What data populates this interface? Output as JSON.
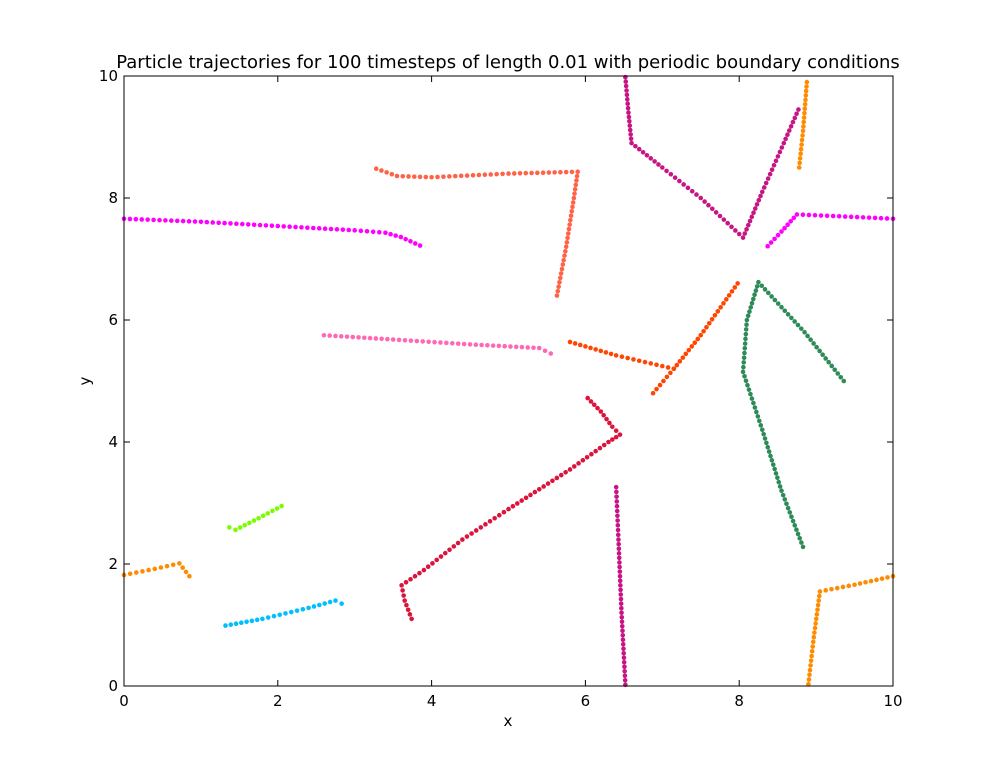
{
  "chart_data": {
    "type": "scatter",
    "title": "Particle trajectories for 100 timesteps of length 0.01 with periodic boundary conditions",
    "xlabel": "x",
    "ylabel": "y",
    "xlim": [
      0,
      10
    ],
    "ylim": [
      0,
      10
    ],
    "xticks": [
      "0",
      "2",
      "4",
      "6",
      "8",
      "10"
    ],
    "yticks": [
      "0",
      "2",
      "4",
      "6",
      "8",
      "10"
    ],
    "grid": false,
    "legend": "none",
    "trajectories": [
      {
        "color": "#ff00ff",
        "segments": [
          [
            [
              0.0,
              7.66
            ],
            [
              1.0,
              7.61
            ],
            [
              2.0,
              7.54
            ],
            [
              3.0,
              7.47
            ],
            [
              3.4,
              7.43
            ],
            [
              3.6,
              7.36
            ],
            [
              3.85,
              7.22
            ]
          ],
          [
            [
              8.37,
              7.21
            ],
            [
              8.55,
              7.45
            ],
            [
              8.75,
              7.73
            ],
            [
              9.3,
              7.7
            ],
            [
              10.0,
              7.66
            ]
          ]
        ]
      },
      {
        "color": "#ff6347",
        "segments": [
          [
            [
              3.28,
              8.48
            ],
            [
              3.55,
              8.36
            ],
            [
              4.0,
              8.34
            ],
            [
              5.0,
              8.4
            ],
            [
              5.9,
              8.43
            ],
            [
              5.85,
              8.0
            ],
            [
              5.75,
              7.2
            ],
            [
              5.63,
              6.4
            ]
          ]
        ]
      },
      {
        "color": "#c71585",
        "segments": [
          [
            [
              6.52,
              9.98
            ],
            [
              6.56,
              9.4
            ],
            [
              6.6,
              8.9
            ],
            [
              7.0,
              8.5
            ],
            [
              7.5,
              8.0
            ],
            [
              8.05,
              7.35
            ],
            [
              8.3,
              8.1
            ],
            [
              8.58,
              8.9
            ],
            [
              8.77,
              9.45
            ]
          ],
          [
            [
              6.4,
              3.26
            ],
            [
              6.43,
              2.4
            ],
            [
              6.47,
              1.2
            ],
            [
              6.52,
              0.02
            ]
          ]
        ]
      },
      {
        "color": "#ff8c00",
        "segments": [
          [
            [
              8.78,
              8.5
            ],
            [
              8.83,
              9.1
            ],
            [
              8.88,
              9.9
            ]
          ],
          [
            [
              0.0,
              1.82
            ],
            [
              0.4,
              1.92
            ],
            [
              0.72,
              2.01
            ],
            [
              0.85,
              1.8
            ]
          ],
          [
            [
              8.9,
              0.03
            ],
            [
              8.97,
              0.8
            ],
            [
              9.05,
              1.55
            ],
            [
              9.5,
              1.66
            ],
            [
              10.0,
              1.8
            ]
          ]
        ]
      },
      {
        "color": "#2e8b57",
        "segments": [
          [
            [
              9.36,
              5.0
            ],
            [
              8.85,
              5.8
            ],
            [
              8.25,
              6.62
            ],
            [
              8.1,
              6.0
            ],
            [
              8.05,
              5.15
            ],
            [
              8.3,
              4.2
            ],
            [
              8.55,
              3.2
            ],
            [
              8.83,
              2.28
            ]
          ]
        ]
      },
      {
        "color": "#ff4500",
        "segments": [
          [
            [
              5.8,
              5.64
            ],
            [
              6.4,
              5.42
            ],
            [
              7.15,
              5.2
            ],
            [
              6.88,
              4.8
            ]
          ],
          [
            [
              7.15,
              5.2
            ],
            [
              7.5,
              5.75
            ],
            [
              7.98,
              6.6
            ]
          ]
        ]
      },
      {
        "color": "#ff69b4",
        "segments": [
          [
            [
              2.6,
              5.75
            ],
            [
              3.5,
              5.68
            ],
            [
              4.5,
              5.6
            ],
            [
              5.4,
              5.54
            ],
            [
              5.55,
              5.45
            ]
          ]
        ]
      },
      {
        "color": "#dc143c",
        "segments": [
          [
            [
              6.03,
              4.72
            ],
            [
              6.2,
              4.5
            ],
            [
              6.35,
              4.25
            ],
            [
              6.45,
              4.12
            ],
            [
              6.3,
              4.0
            ],
            [
              5.8,
              3.55
            ],
            [
              5.0,
              2.9
            ],
            [
              4.4,
              2.4
            ],
            [
              3.9,
              1.9
            ],
            [
              3.61,
              1.65
            ],
            [
              3.65,
              1.4
            ],
            [
              3.74,
              1.1
            ]
          ]
        ]
      },
      {
        "color": "#7cfc00",
        "segments": [
          [
            [
              1.37,
              2.6
            ],
            [
              1.45,
              2.56
            ],
            [
              1.75,
              2.75
            ],
            [
              2.05,
              2.95
            ]
          ]
        ]
      },
      {
        "color": "#00bfff",
        "segments": [
          [
            [
              1.32,
              0.99
            ],
            [
              1.8,
              1.1
            ],
            [
              2.4,
              1.28
            ],
            [
              2.75,
              1.4
            ],
            [
              2.83,
              1.35
            ]
          ]
        ]
      }
    ]
  }
}
